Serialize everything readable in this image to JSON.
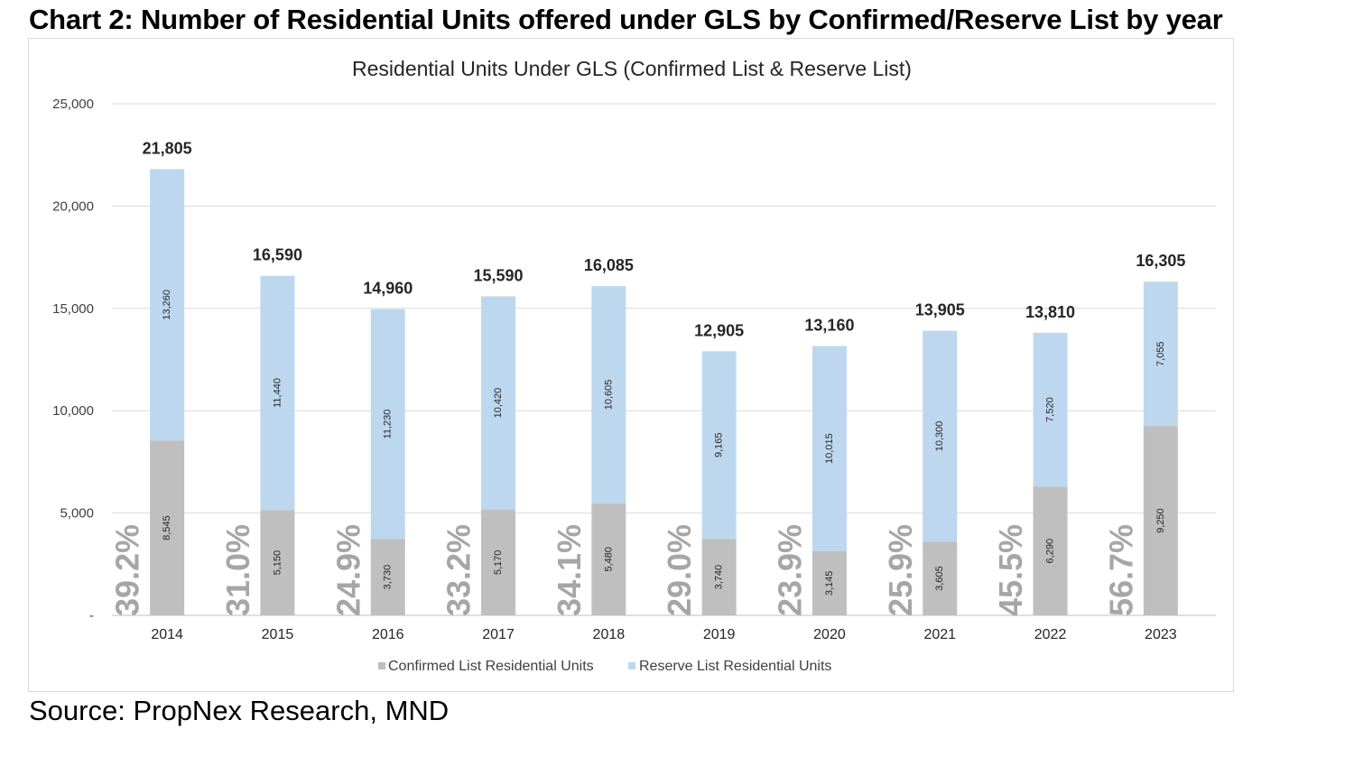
{
  "heading": "Chart 2: Number of Residential Units offered under GLS by Confirmed/Reserve List by year",
  "source": "Source: PropNex Research, MND",
  "colors": {
    "confirmed": "#bfbfbf",
    "reserve": "#bdd7ee",
    "grid": "#d9d9d9",
    "axis": "#bfbfbf",
    "pct_text": "#a6a6a6"
  },
  "chart_data": {
    "type": "bar",
    "stacked": true,
    "title": "Residential Units Under GLS (Confirmed List & Reserve List)",
    "categories": [
      "2014",
      "2015",
      "2016",
      "2017",
      "2018",
      "2019",
      "2020",
      "2021",
      "2022",
      "2023"
    ],
    "series": [
      {
        "name": "Confirmed List Residential Units",
        "values": [
          8545,
          5150,
          3730,
          5170,
          5480,
          3740,
          3145,
          3605,
          6290,
          9250
        ],
        "value_labels": [
          "8,545",
          "5,150",
          "3,730",
          "5,170",
          "5,480",
          "3,740",
          "3,145",
          "3,605",
          "6,290",
          "9,250"
        ]
      },
      {
        "name": "Reserve List Residential Units",
        "values": [
          13260,
          11440,
          11230,
          10420,
          10605,
          9165,
          10015,
          10300,
          7520,
          7055
        ],
        "value_labels": [
          "13,260",
          "11,440",
          "11,230",
          "10,420",
          "10,605",
          "9,165",
          "10,015",
          "10,300",
          "7,520",
          "7,055"
        ]
      }
    ],
    "totals": [
      "21,805",
      "16,590",
      "14,960",
      "15,590",
      "16,085",
      "12,905",
      "13,160",
      "13,905",
      "13,810",
      "16,305"
    ],
    "confirmed_share": [
      "39.2%",
      "31.0%",
      "24.9%",
      "33.2%",
      "34.1%",
      "29.0%",
      "23.9%",
      "25.9%",
      "45.5%",
      "56.7%"
    ],
    "ylim": [
      0,
      25000
    ],
    "yticks": [
      0,
      5000,
      10000,
      15000,
      20000,
      25000
    ],
    "ytick_labels": [
      "-",
      "5,000",
      "10,000",
      "15,000",
      "20,000",
      "25,000"
    ],
    "grid": true,
    "legend_position": "bottom"
  }
}
